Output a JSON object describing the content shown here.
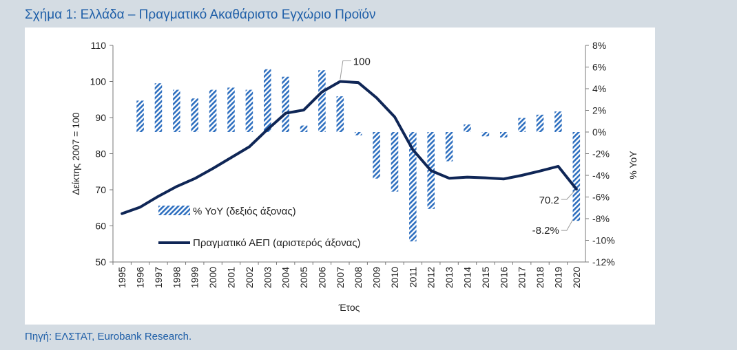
{
  "figure": {
    "title": "Σχήμα 1: Ελλάδα – Πραγματικό Ακαθάριστο Εγχώριο Προϊόν",
    "source": "Πηγή: ΕΛΣΤΑΤ, Eurobank Research."
  },
  "chart_data": {
    "type": "bar+line",
    "title": "",
    "xlabel": "Έτος",
    "ylabel_left": "Δείκτης 2007 = 100",
    "ylabel_right": "% YoY",
    "ylim_left": [
      50,
      110
    ],
    "ylim_right": [
      -12,
      8
    ],
    "left_ticks": [
      "110",
      "100",
      "90",
      "80",
      "70",
      "60",
      "50"
    ],
    "right_ticks": [
      "8%",
      "6%",
      "4%",
      "2%",
      "0%",
      "-2%",
      "-4%",
      "-6%",
      "-8%",
      "-10%",
      "-12%"
    ],
    "categories": [
      "1995",
      "1996",
      "1997",
      "1998",
      "1999",
      "2000",
      "2001",
      "2002",
      "2003",
      "2004",
      "2005",
      "2006",
      "2007",
      "2008",
      "2009",
      "2010",
      "2011",
      "2012",
      "2013",
      "2014",
      "2015",
      "2016",
      "2017",
      "2018",
      "2019",
      "2020"
    ],
    "series": [
      {
        "name": "% YoY (δεξιός άξονας)",
        "type": "bar",
        "axis": "right",
        "pattern": "diagonal-hatch",
        "color": "#2e6fbf",
        "values": [
          null,
          2.9,
          4.5,
          3.9,
          3.1,
          3.9,
          4.1,
          3.9,
          5.8,
          5.1,
          0.6,
          5.7,
          3.3,
          -0.3,
          -4.3,
          -5.5,
          -10.1,
          -7.1,
          -2.7,
          0.7,
          -0.4,
          -0.5,
          1.3,
          1.6,
          1.9,
          -8.2
        ]
      },
      {
        "name": "Πραγματικό ΑΕΠ (αριστερός άξονας)",
        "type": "line",
        "axis": "left",
        "color": "#0f2656",
        "values": [
          63.4,
          65.2,
          68.2,
          70.9,
          73.1,
          75.9,
          78.9,
          81.9,
          86.7,
          91.2,
          92.1,
          97.1,
          100.0,
          99.7,
          95.5,
          90.2,
          81.1,
          75.3,
          73.2,
          73.5,
          73.3,
          73.0,
          74.0,
          75.2,
          76.5,
          70.2
        ]
      }
    ],
    "annotations": [
      {
        "text": "100",
        "year": "2007",
        "axis": "left",
        "value": 100
      },
      {
        "text": "70.2",
        "year": "2020",
        "axis": "left",
        "value": 70.2
      },
      {
        "text": "-8.2%",
        "year": "2020",
        "axis": "right",
        "value": -8.2
      }
    ],
    "legend": {
      "placement": "inside-left",
      "items": [
        "% YoY (δεξιός άξονας)",
        "Πραγματικό ΑΕΠ (αριστερός άξονας)"
      ]
    },
    "grid": false
  }
}
